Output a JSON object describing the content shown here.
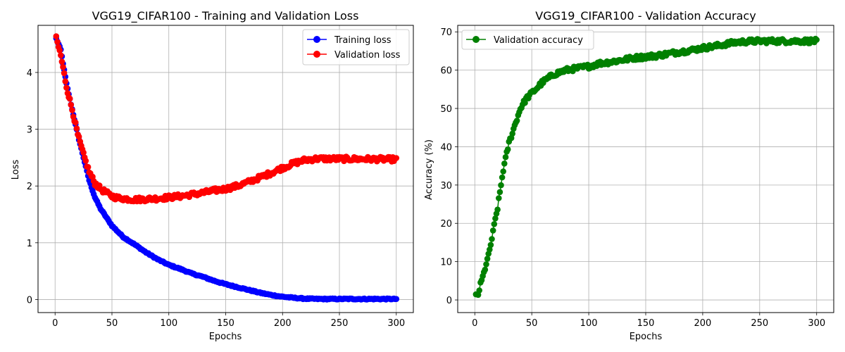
{
  "chart_data": [
    {
      "type": "line",
      "title": "VGG19_CIFAR100 - Training and Validation Loss",
      "xlabel": "Epochs",
      "ylabel": "Loss",
      "xlim": [
        -15,
        315
      ],
      "ylim": [
        -0.23,
        4.83
      ],
      "xticks": [
        0,
        50,
        100,
        150,
        200,
        250,
        300
      ],
      "yticks": [
        0,
        1,
        2,
        3,
        4
      ],
      "grid": true,
      "legend_position": "upper-right",
      "x_range": [
        1,
        300
      ],
      "series": [
        {
          "name": "Training loss",
          "color": "#0000ff",
          "marker": "circle",
          "anchors": [
            [
              1,
              4.6
            ],
            [
              5,
              4.4
            ],
            [
              10,
              3.8
            ],
            [
              15,
              3.35
            ],
            [
              20,
              2.9
            ],
            [
              25,
              2.5
            ],
            [
              30,
              2.1
            ],
            [
              35,
              1.8
            ],
            [
              40,
              1.6
            ],
            [
              45,
              1.45
            ],
            [
              50,
              1.3
            ],
            [
              55,
              1.2
            ],
            [
              60,
              1.1
            ],
            [
              70,
              0.97
            ],
            [
              80,
              0.83
            ],
            [
              90,
              0.71
            ],
            [
              100,
              0.61
            ],
            [
              110,
              0.54
            ],
            [
              120,
              0.46
            ],
            [
              130,
              0.4
            ],
            [
              140,
              0.33
            ],
            [
              150,
              0.27
            ],
            [
              160,
              0.22
            ],
            [
              170,
              0.17
            ],
            [
              180,
              0.12
            ],
            [
              190,
              0.08
            ],
            [
              200,
              0.05
            ],
            [
              210,
              0.03
            ],
            [
              220,
              0.015
            ],
            [
              230,
              0.01
            ],
            [
              300,
              0.01
            ]
          ],
          "noise": 0.01
        },
        {
          "name": "Validation loss",
          "color": "#ff0000",
          "marker": "circle",
          "anchors": [
            [
              1,
              4.6
            ],
            [
              5,
              4.3
            ],
            [
              10,
              3.75
            ],
            [
              15,
              3.35
            ],
            [
              20,
              2.9
            ],
            [
              25,
              2.55
            ],
            [
              30,
              2.25
            ],
            [
              35,
              2.05
            ],
            [
              40,
              1.95
            ],
            [
              45,
              1.88
            ],
            [
              50,
              1.82
            ],
            [
              55,
              1.79
            ],
            [
              60,
              1.78
            ],
            [
              70,
              1.76
            ],
            [
              80,
              1.77
            ],
            [
              90,
              1.78
            ],
            [
              100,
              1.8
            ],
            [
              110,
              1.82
            ],
            [
              120,
              1.85
            ],
            [
              130,
              1.88
            ],
            [
              140,
              1.92
            ],
            [
              150,
              1.95
            ],
            [
              160,
              2.0
            ],
            [
              170,
              2.07
            ],
            [
              180,
              2.15
            ],
            [
              190,
              2.23
            ],
            [
              200,
              2.32
            ],
            [
              210,
              2.4
            ],
            [
              220,
              2.46
            ],
            [
              230,
              2.48
            ],
            [
              240,
              2.48
            ],
            [
              300,
              2.47
            ]
          ],
          "noise": 0.04
        }
      ]
    },
    {
      "type": "line",
      "title": "VGG19_CIFAR100 - Validation Accuracy",
      "xlabel": "Epochs",
      "ylabel": "Accuracy (%)",
      "xlim": [
        -15,
        315
      ],
      "ylim": [
        -3.3,
        71.7
      ],
      "xticks": [
        0,
        50,
        100,
        150,
        200,
        250,
        300
      ],
      "yticks": [
        0,
        10,
        20,
        30,
        40,
        50,
        60,
        70
      ],
      "grid": true,
      "legend_position": "upper-left",
      "x_range": [
        1,
        300
      ],
      "series": [
        {
          "name": "Validation accuracy",
          "color": "#008000",
          "marker": "circle",
          "anchors": [
            [
              1,
              1.0
            ],
            [
              3,
              1.5
            ],
            [
              5,
              4.0
            ],
            [
              8,
              7.0
            ],
            [
              10,
              9.5
            ],
            [
              12,
              11.5
            ],
            [
              15,
              16.0
            ],
            [
              18,
              21.0
            ],
            [
              20,
              24.0
            ],
            [
              23,
              30.0
            ],
            [
              25,
              34.0
            ],
            [
              30,
              41.0
            ],
            [
              35,
              45.5
            ],
            [
              40,
              50.0
            ],
            [
              45,
              52.5
            ],
            [
              50,
              54.0
            ],
            [
              55,
              55.5
            ],
            [
              60,
              57.0
            ],
            [
              70,
              59.0
            ],
            [
              80,
              60.0
            ],
            [
              90,
              60.5
            ],
            [
              100,
              61.0
            ],
            [
              110,
              61.8
            ],
            [
              120,
              62.2
            ],
            [
              130,
              62.7
            ],
            [
              140,
              63.2
            ],
            [
              150,
              63.5
            ],
            [
              160,
              63.8
            ],
            [
              170,
              64.3
            ],
            [
              180,
              64.8
            ],
            [
              190,
              65.2
            ],
            [
              200,
              65.8
            ],
            [
              210,
              66.2
            ],
            [
              220,
              66.8
            ],
            [
              230,
              67.3
            ],
            [
              240,
              67.5
            ],
            [
              250,
              67.6
            ],
            [
              300,
              67.6
            ]
          ],
          "noise": 0.6
        }
      ]
    }
  ]
}
